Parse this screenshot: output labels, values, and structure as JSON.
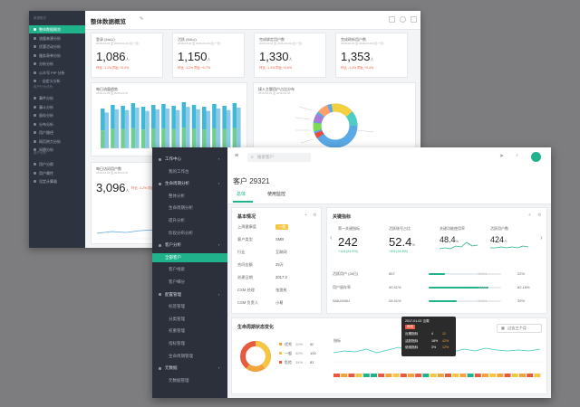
{
  "back_window": {
    "sidebar": {
      "header": "数据概览",
      "items": [
        {
          "label": "整体数据概览",
          "active": true
        },
        {
          "label": "流量来源分析"
        },
        {
          "label": "优惠活动分析"
        },
        {
          "label": "服务表单分析"
        },
        {
          "label": "分析分析"
        },
        {
          "label": "公众号 PIP 分析"
        },
        {
          "label": "·· 自定义分析"
        }
      ],
      "section2": "用户行为分析",
      "items2": [
        {
          "label": "事件分析"
        },
        {
          "label": "漏斗分析"
        },
        {
          "label": "留存分析"
        },
        {
          "label": "分布分析"
        },
        {
          "label": "用户路径"
        },
        {
          "label": "网页热力分析"
        },
        {
          "label": "间隔分析"
        }
      ],
      "section3": "用户分析",
      "items3": [
        {
          "label": "用户分群"
        },
        {
          "label": "用户属性"
        },
        {
          "label": "设定计算器"
        }
      ]
    },
    "title": "整体数据概览",
    "kpis": [
      {
        "title": "登录 (MAU)",
        "sub": "2016-04-01 至 2016-04-30 (近 7 天)",
        "value": "1,086",
        "unit": "人",
        "change": "环比 -1.2% 同比 +0.4%"
      },
      {
        "title": "活跃 (MAU)",
        "sub": "2016-04-01 至 2016-04-30 (近 7 天)",
        "value": "1,150",
        "unit": "人",
        "change": "环比 -1.2% 同比 +0.7%"
      },
      {
        "title": "完成绑定用户数",
        "sub": "2016-04-01 至 2016-04-30 (近 7 天)",
        "value": "1,330",
        "unit": "人",
        "change": "环比 -1.2% 同比 +0.6%"
      },
      {
        "title": "完成刷新用户数",
        "sub": "2016-04-01 至 2016-04-30 (近 7 天)",
        "value": "1,353",
        "unit": "人",
        "change": "环比 -1.2% 同比 +0.4%"
      }
    ],
    "bar_panel": {
      "title": "每日流量趋势",
      "sub": "2016-04-01 至 2016-04-30"
    },
    "donut_panel": {
      "title": "接入主题用户占比分布",
      "sub": "2016-04-01 至 2016-04-30"
    },
    "small_panel": {
      "title": "每日访问用户数",
      "sub": "2016-04-01 至 2016-04-30",
      "value": "3,096",
      "unit": "人",
      "change": "环比 -1.2% 同比 +0.4%"
    }
  },
  "front_window": {
    "search_placeholder": "搜索客户",
    "sidebar": [
      {
        "label": "工作中心",
        "type": "grp"
      },
      {
        "label": "我的工作台",
        "type": "sub"
      },
      {
        "label": "生命周期分析",
        "type": "grp"
      },
      {
        "label": "整体分析",
        "type": "sub"
      },
      {
        "label": "生命周期分析",
        "type": "sub"
      },
      {
        "label": "提升分析",
        "type": "sub"
      },
      {
        "label": "阶段分布分析",
        "type": "sub"
      },
      {
        "label": "客户分析",
        "type": "grp"
      },
      {
        "label": "全部客户",
        "type": "active"
      },
      {
        "label": "客户线索",
        "type": "sub"
      },
      {
        "label": "客户细分",
        "type": "sub"
      },
      {
        "label": "配置管理",
        "type": "grp"
      },
      {
        "label": "标签管理",
        "type": "sub"
      },
      {
        "label": "分类管理",
        "type": "sub"
      },
      {
        "label": "权重管理",
        "type": "sub"
      },
      {
        "label": "指标管理",
        "type": "sub"
      },
      {
        "label": "生命周期管理",
        "type": "sub"
      },
      {
        "label": "元数据",
        "type": "grp"
      },
      {
        "label": "元数据管理",
        "type": "sub"
      }
    ],
    "customer_title": "客户 29321",
    "tabs": [
      "总体",
      "使用监控"
    ],
    "basic": {
      "title": "基本情况",
      "rows": [
        {
          "k": "上周健康度",
          "v": "一般"
        },
        {
          "k": "客户类型",
          "v": "SMB"
        },
        {
          "k": "行业",
          "v": "互联网"
        },
        {
          "k": "合同金额",
          "v": "25万"
        },
        {
          "k": "创建日期",
          "v": "2017.3"
        },
        {
          "k": "CSM 经理",
          "v": "张思彤"
        },
        {
          "k": "CSM 负责人",
          "v": "小易"
        }
      ]
    },
    "key": {
      "title": "关键指标",
      "kpis": [
        {
          "title": "第一关键指标",
          "value": "242",
          "unit": "",
          "change": "+124 (24.9%)"
        },
        {
          "title": "活跃账号占比",
          "value": "52.4",
          "unit": "%",
          "change": "+4% (24.8%)"
        },
        {
          "title": "关键功能使用率",
          "value": "48.4",
          "unit": "%",
          "change": ""
        },
        {
          "title": "活跃用户数",
          "value": "424",
          "unit": "人",
          "change": ""
        }
      ],
      "metrics": [
        {
          "k": "活跃用户 (28日)",
          "v": "857",
          "pct": 0.22,
          "label": "22%"
        },
        {
          "k": "用户留存率",
          "v": "40.41%",
          "pct": 0.82,
          "label": "82.18%"
        },
        {
          "k": "WAU/MAU",
          "v": "28.41%",
          "pct": 0.39,
          "label": "39%"
        }
      ],
      "bar_scale": "100%"
    },
    "lifecycle": {
      "title": "生命周期状态变化",
      "date_button": "过去三个月",
      "legend": [
        {
          "label": "优秀",
          "pct": "20%",
          "count": "50",
          "color": "#f0a43b"
        },
        {
          "label": "一般",
          "pct": "40%",
          "count": "100",
          "color": "#f5c642"
        },
        {
          "label": "危险",
          "pct": "34%",
          "count": "83",
          "color": "#e75a3f"
        }
      ],
      "tl_label": "指标",
      "tooltip": {
        "date": "2017-01-02 当周",
        "badge": "危险",
        "rows": [
          {
            "k": "近期指标",
            "v": "4",
            "extra": "12"
          },
          {
            "k": "活跃指标",
            "v": "18%",
            "extra": "42%"
          },
          {
            "k": "使用指标",
            "v": "3%",
            "extra": "12%"
          }
        ]
      }
    }
  }
}
